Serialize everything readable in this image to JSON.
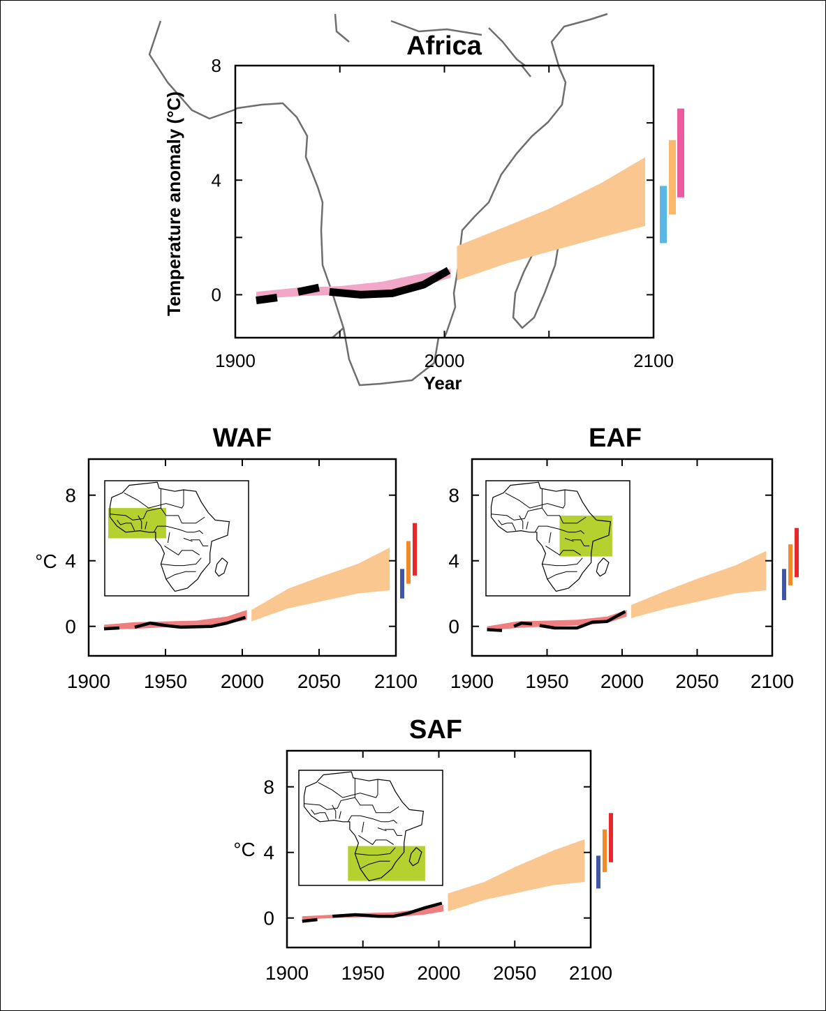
{
  "colors": {
    "observed": "#000000",
    "hist_envelope_main": "#f2a6c8",
    "hist_envelope_small": "#ef7f7f",
    "projection": "#fbc791",
    "map_outline": "#6e6e6e",
    "region_highlight": "#b5d12f",
    "bar_low_main": "#5bb7e6",
    "bar_mid_main": "#fbb86c",
    "bar_high_main": "#ec5aa0",
    "bar_low": "#3f56a6",
    "bar_mid": "#f28a2a",
    "bar_high": "#e8262b"
  },
  "chart_data": [
    {
      "id": "africa",
      "type": "line",
      "title": "Africa",
      "xlabel": "Year",
      "ylabel": "Temperature anomaly (°C)",
      "xlim": [
        1900,
        2100
      ],
      "ylim": [
        -1.5,
        8
      ],
      "xticks": [
        1900,
        2000,
        2100
      ],
      "yticks": [
        0,
        4,
        8
      ],
      "xticks_minor": [
        1950,
        2050
      ],
      "yticks_minor": [
        2,
        6
      ],
      "background_map": "africa-outline",
      "observed_segments": [
        {
          "x": [
            1910,
            1920
          ],
          "y": [
            -0.2,
            -0.1
          ]
        },
        {
          "x": [
            1930,
            1940
          ],
          "y": [
            0.1,
            0.25
          ]
        },
        {
          "x": [
            1945,
            1960,
            1975,
            1990,
            2002
          ],
          "y": [
            0.1,
            0.0,
            0.05,
            0.35,
            0.85
          ]
        }
      ],
      "historical_envelope": {
        "x": [
          1910,
          1930,
          1950,
          1970,
          1990,
          2003
        ],
        "lower": [
          -0.15,
          -0.05,
          0.0,
          0.05,
          0.3,
          0.6
        ],
        "upper": [
          0.1,
          0.25,
          0.3,
          0.45,
          0.75,
          0.9
        ]
      },
      "projection_envelope": {
        "x": [
          2006,
          2030,
          2050,
          2075,
          2096
        ],
        "lower": [
          0.5,
          1.1,
          1.5,
          2.0,
          2.4
        ],
        "upper": [
          1.7,
          2.4,
          3.0,
          3.9,
          4.8
        ]
      },
      "scenario_ranges": [
        {
          "low": 1.8,
          "high": 3.8,
          "color_key": "bar_low_main"
        },
        {
          "low": 2.8,
          "high": 5.4,
          "color_key": "bar_mid_main"
        },
        {
          "low": 3.4,
          "high": 6.5,
          "color_key": "bar_high_main"
        }
      ]
    },
    {
      "id": "waf",
      "type": "line",
      "title": "WAF",
      "ylabel": "°C",
      "xlim": [
        1900,
        2100
      ],
      "ylim": [
        -1.8,
        10.2
      ],
      "xticks": [
        1900,
        1950,
        2000,
        2050,
        2100
      ],
      "yticks": [
        0,
        4,
        8
      ],
      "inset_map": "africa-countries",
      "highlight_box": {
        "lon": [
          -18,
          15
        ],
        "lat": [
          0,
          20
        ]
      },
      "observed_segments": [
        {
          "x": [
            1910,
            1920
          ],
          "y": [
            -0.15,
            -0.1
          ]
        },
        {
          "x": [
            1930,
            1940,
            1950,
            1960,
            1980,
            1990,
            2002
          ],
          "y": [
            -0.05,
            0.2,
            0.05,
            -0.05,
            0.0,
            0.2,
            0.55
          ]
        }
      ],
      "historical_envelope": {
        "x": [
          1910,
          1930,
          1950,
          1970,
          1990,
          2003
        ],
        "lower": [
          -0.2,
          -0.15,
          -0.05,
          0.0,
          0.15,
          0.4
        ],
        "upper": [
          0.1,
          0.25,
          0.3,
          0.35,
          0.6,
          1.0
        ]
      },
      "projection_envelope": {
        "x": [
          2006,
          2030,
          2050,
          2075,
          2096
        ],
        "lower": [
          0.3,
          1.1,
          1.5,
          2.0,
          2.2
        ],
        "upper": [
          1.0,
          2.3,
          3.0,
          3.8,
          4.8
        ]
      },
      "scenario_ranges": [
        {
          "low": 1.7,
          "high": 3.5,
          "color_key": "bar_low"
        },
        {
          "low": 2.6,
          "high": 5.2,
          "color_key": "bar_mid"
        },
        {
          "low": 3.1,
          "high": 6.3,
          "color_key": "bar_high"
        }
      ]
    },
    {
      "id": "eaf",
      "type": "line",
      "title": "EAF",
      "xlim": [
        1900,
        2100
      ],
      "ylim": [
        -1.8,
        10.2
      ],
      "xticks": [
        1900,
        1950,
        2000,
        2050,
        2100
      ],
      "yticks": [
        0,
        4,
        8
      ],
      "inset_map": "africa-countries",
      "highlight_box": {
        "lon": [
          22,
          52
        ],
        "lat": [
          -12,
          15
        ]
      },
      "observed_segments": [
        {
          "x": [
            1910,
            1920
          ],
          "y": [
            -0.2,
            -0.25
          ]
        },
        {
          "x": [
            1928,
            1933,
            1940
          ],
          "y": [
            0.0,
            0.2,
            0.15
          ]
        },
        {
          "x": [
            1945,
            1955,
            1970,
            1980,
            1990,
            2002
          ],
          "y": [
            0.05,
            -0.1,
            -0.1,
            0.25,
            0.3,
            0.9
          ]
        }
      ],
      "historical_envelope": {
        "x": [
          1910,
          1930,
          1950,
          1970,
          1990,
          2003
        ],
        "lower": [
          -0.25,
          -0.1,
          0.0,
          0.05,
          0.2,
          0.6
        ],
        "upper": [
          0.0,
          0.3,
          0.35,
          0.4,
          0.6,
          1.0
        ]
      },
      "projection_envelope": {
        "x": [
          2006,
          2030,
          2050,
          2075,
          2096
        ],
        "lower": [
          0.5,
          1.1,
          1.5,
          2.0,
          2.2
        ],
        "upper": [
          1.3,
          2.2,
          2.9,
          3.7,
          4.6
        ]
      },
      "scenario_ranges": [
        {
          "low": 1.6,
          "high": 3.5,
          "color_key": "bar_low"
        },
        {
          "low": 2.5,
          "high": 5.0,
          "color_key": "bar_mid"
        },
        {
          "low": 3.0,
          "high": 6.0,
          "color_key": "bar_high"
        }
      ]
    },
    {
      "id": "saf",
      "type": "line",
      "title": "SAF",
      "ylabel": "°C",
      "xlim": [
        1900,
        2100
      ],
      "ylim": [
        -1.8,
        10.2
      ],
      "xticks": [
        1900,
        1950,
        2000,
        2050,
        2100
      ],
      "yticks": [
        0,
        4,
        8
      ],
      "inset_map": "africa-countries",
      "highlight_box": {
        "lon": [
          8,
          52
        ],
        "lat": [
          -35,
          -12
        ]
      },
      "observed_segments": [
        {
          "x": [
            1910,
            1920
          ],
          "y": [
            -0.2,
            -0.1
          ]
        },
        {
          "x": [
            1930,
            1945,
            1960,
            1970,
            1980,
            1990,
            2002
          ],
          "y": [
            0.1,
            0.2,
            0.1,
            0.1,
            0.3,
            0.6,
            0.9
          ]
        }
      ],
      "historical_envelope": {
        "x": [
          1910,
          1930,
          1950,
          1970,
          1990,
          2003
        ],
        "lower": [
          -0.1,
          0.0,
          0.05,
          0.05,
          0.2,
          0.4
        ],
        "upper": [
          0.1,
          0.2,
          0.3,
          0.35,
          0.55,
          0.8
        ]
      },
      "projection_envelope": {
        "x": [
          2006,
          2030,
          2050,
          2075,
          2096
        ],
        "lower": [
          0.4,
          1.1,
          1.5,
          2.0,
          2.2
        ],
        "upper": [
          1.5,
          2.2,
          3.1,
          4.1,
          4.8
        ]
      },
      "scenario_ranges": [
        {
          "low": 1.8,
          "high": 3.8,
          "color_key": "bar_low"
        },
        {
          "low": 2.8,
          "high": 5.4,
          "color_key": "bar_mid"
        },
        {
          "low": 3.4,
          "high": 6.4,
          "color_key": "bar_high"
        }
      ]
    }
  ]
}
